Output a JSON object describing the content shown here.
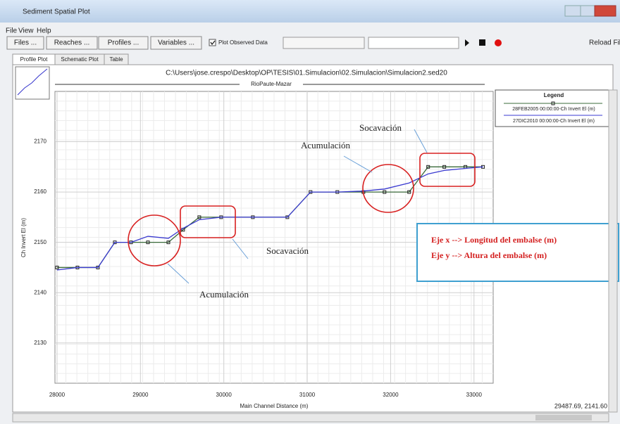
{
  "window": {
    "title": "Sediment Spatial Plot"
  },
  "menu": [
    "File",
    "View",
    "Help"
  ],
  "toolbar": {
    "buttons": [
      "Files ...",
      "Reaches ...",
      "Profiles ...",
      "Variables ..."
    ],
    "checkbox": "Plot Observed Data",
    "checked": true,
    "reload": "Reload File"
  },
  "tabs": [
    "Profile Plot",
    "Schematic Plot",
    "Table"
  ],
  "status": "29487.69, 2141.60",
  "chart_data": {
    "type": "line",
    "title": "C:\\Users\\jose.crespo\\Desktop\\OP\\TESIS\\01.Simulacion\\02.Simulacion\\Simulacion2.sed20",
    "subtitle": "RioPaute-Mazar",
    "x_label": "Main Channel Distance (m)",
    "y_label": "Ch Invert El (m)",
    "legend_title": "Legend",
    "xlim": [
      27975,
      33230
    ],
    "ylim": [
      2122,
      2180
    ],
    "xticks": [
      28000,
      29000,
      30000,
      31000,
      32000,
      33000
    ],
    "yticks": [
      2130,
      2140,
      2150,
      2160,
      2170
    ],
    "grid": true,
    "series": [
      {
        "name": "28FEB2005 00:00:00-Ch Invert El (m)",
        "color": "#3a6b3a",
        "marker": "square",
        "x": [
          28000,
          28245,
          28490,
          28693,
          28887,
          29090,
          29335,
          29512,
          29706,
          29968,
          30348,
          30762,
          31040,
          31361,
          31674,
          31927,
          32222,
          32450,
          32644,
          32897,
          33108
        ],
        "values": [
          2145,
          2145,
          2145,
          2150,
          2150,
          2150,
          2150,
          2152.5,
          2155,
          2155,
          2155,
          2155,
          2160,
          2160,
          2160,
          2160,
          2160,
          2165,
          2165,
          2165,
          2165
        ]
      },
      {
        "name": "27DIC2010 00:00:00-Ch Invert El (m)",
        "color": "#3a3ad0",
        "marker": "none",
        "x": [
          28000,
          28245,
          28490,
          28693,
          28887,
          29090,
          29335,
          29512,
          29706,
          29968,
          30348,
          30762,
          31040,
          31361,
          31674,
          31927,
          32222,
          32450,
          32644,
          32897,
          33108
        ],
        "values": [
          2144.5,
          2145,
          2145,
          2150,
          2150,
          2151.2,
          2150.8,
          2152.8,
          2154.5,
          2155,
          2155,
          2155,
          2160,
          2160,
          2160.2,
          2160.6,
          2161.8,
          2163.6,
          2164.3,
          2164.7,
          2165
        ]
      }
    ],
    "annotations": [
      "Socavación",
      "Acumulación",
      "Socavación",
      "Acumulación"
    ],
    "note_box": [
      "Eje x --> Longitud del embalse (m)",
      "Eje y --> Altura del embalse (m)"
    ]
  }
}
